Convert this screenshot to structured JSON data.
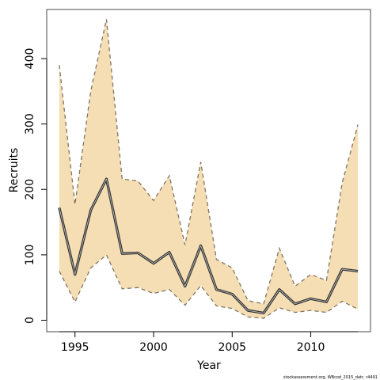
{
  "chart_data": {
    "type": "line",
    "xlabel": "Year",
    "ylabel": "Recruits",
    "xlim": [
      1993.2,
      2013.8
    ],
    "ylim": [
      -17.5,
      475
    ],
    "x_ticks": [
      1995,
      2000,
      2005,
      2010
    ],
    "y_ticks": [
      0,
      100,
      200,
      300,
      400
    ],
    "grid": false,
    "x": [
      1994,
      1995,
      1996,
      1997,
      1998,
      1999,
      2000,
      2001,
      2002,
      2003,
      2004,
      2005,
      2006,
      2007,
      2008,
      2009,
      2010,
      2011,
      2012,
      2013
    ],
    "series": [
      {
        "role": "estimate",
        "values": [
          172,
          70,
          168,
          216,
          102,
          103,
          87,
          104,
          52,
          114,
          47,
          40,
          15,
          11,
          47,
          25,
          33,
          28,
          78,
          75
        ]
      },
      {
        "role": "upper",
        "values": [
          390,
          177,
          350,
          460,
          216,
          213,
          183,
          221,
          115,
          242,
          93,
          80,
          30,
          25,
          110,
          52,
          70,
          61,
          210,
          299
        ]
      },
      {
        "role": "lower",
        "values": [
          75,
          28,
          80,
          100,
          48,
          50,
          41,
          47,
          23,
          53,
          22,
          18,
          5,
          3,
          19,
          12,
          15,
          12,
          29,
          17
        ]
      }
    ],
    "colors": {
      "band": "#f5deb3",
      "bound_line": "#7f7465",
      "estimate_line": "#2f2f2f",
      "estimate_highlight": "#bcbcbc",
      "frame": "#4a4a4a"
    }
  },
  "credit": "stockassessment.org, WBcod_2015_datr, r4491"
}
